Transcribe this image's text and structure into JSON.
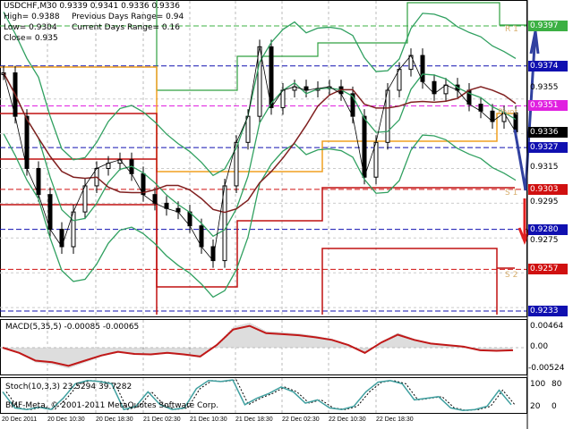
{
  "header": {
    "symbol_line": "USDCHF,M30  0.9339 0.9341 0.9336 0.9336",
    "high": "High= 0.9388",
    "low": "Low= 0.9304",
    "close": "Close= 0.935",
    "prev_range": "Previous Days Range= 0.94",
    "curr_range": "Current Days Range= 0.16"
  },
  "price_tags": [
    {
      "label": "0.9397",
      "price": 0.9397,
      "color": "#3cb043"
    },
    {
      "label": "0.9374",
      "price": 0.9374,
      "color": "#1010b0"
    },
    {
      "label": "0.9351",
      "price": 0.9351,
      "color": "#e020e0"
    },
    {
      "label": "0.9336",
      "price": 0.9336,
      "color": "#000000"
    },
    {
      "label": "0.9327",
      "price": 0.9327,
      "color": "#1010b0"
    },
    {
      "label": "0.9303",
      "price": 0.9303,
      "color": "#d01010"
    },
    {
      "label": "0.9280",
      "price": 0.928,
      "color": "#1010b0"
    },
    {
      "label": "0.9257",
      "price": 0.9257,
      "color": "#d01010"
    },
    {
      "label": "0.9233",
      "price": 0.9233,
      "color": "#1010b0"
    }
  ],
  "axis_ticks": [
    {
      "label": "0.9355",
      "price": 0.9355
    },
    {
      "label": "0.9315",
      "price": 0.9315
    },
    {
      "label": "0.9295",
      "price": 0.9295
    },
    {
      "label": "0.9275",
      "price": 0.9275
    }
  ],
  "level_labels": {
    "r1": "R 1",
    "pivot": "Pivot",
    "s1": "S 1",
    "s2": "S 2"
  },
  "chart_data": {
    "type": "line",
    "closes": [
      0.937,
      0.9345,
      0.9315,
      0.93,
      0.928,
      0.927,
      0.929,
      0.9305,
      0.9315,
      0.9318,
      0.932,
      0.9312,
      0.93,
      0.9295,
      0.9292,
      0.929,
      0.9282,
      0.927,
      0.9262,
      0.9305,
      0.933,
      0.9345,
      0.9385,
      0.935,
      0.936,
      0.9362,
      0.936,
      0.9361,
      0.9362,
      0.9358,
      0.9345,
      0.931,
      0.933,
      0.936,
      0.9372,
      0.938,
      0.9365,
      0.9358,
      0.9363,
      0.936,
      0.9352,
      0.9348,
      0.9342,
      0.9347,
      0.9336
    ],
    "time_labels": [
      "20 Dec 2011",
      "20 Dec 10:30",
      "20 Dec 18:30",
      "21 Dec 02:30",
      "21 Dec 10:30",
      "21 Dec 18:30",
      "22 Dec 02:30",
      "22 Dec 10:30",
      "22 Dec 18:30"
    ]
  },
  "macd": {
    "label": "MACD(5,35,5) -0.00085 -0.00065",
    "ticks": [
      "0.00464",
      "0.00",
      "-0.00524"
    ],
    "signal": [
      0,
      -0.001,
      -0.0025,
      -0.0028,
      -0.0035,
      -0.0025,
      -0.0015,
      -0.0008,
      -0.0012,
      -0.0013,
      -0.001,
      -0.0013,
      -0.0017,
      0.0005,
      0.0035,
      0.0042,
      0.0028,
      0.0026,
      0.0024,
      0.002,
      0.0015,
      0.0005,
      -0.001,
      0.001,
      0.0025,
      0.0015,
      0.0008,
      0.0005,
      0.0002,
      -0.0005,
      -0.0006,
      -0.0005
    ]
  },
  "stoch": {
    "label": "Stoch(10,3,3) 23.5294 39.7282",
    "ticks": [
      "100",
      "80",
      "20",
      "0"
    ],
    "main": [
      60,
      10,
      5,
      12,
      5,
      40,
      85,
      95,
      92,
      85,
      5,
      15,
      60,
      20,
      5,
      10,
      70,
      95,
      92,
      97,
      20,
      40,
      55,
      75,
      60,
      25,
      35,
      10,
      5,
      15,
      60,
      90,
      95,
      85,
      35,
      40,
      45,
      10,
      2,
      5,
      15,
      65,
      20
    ]
  },
  "footer": {
    "copyright": "BMF-Meta, © 2001-2011 MetaQuotes Software Corp."
  }
}
